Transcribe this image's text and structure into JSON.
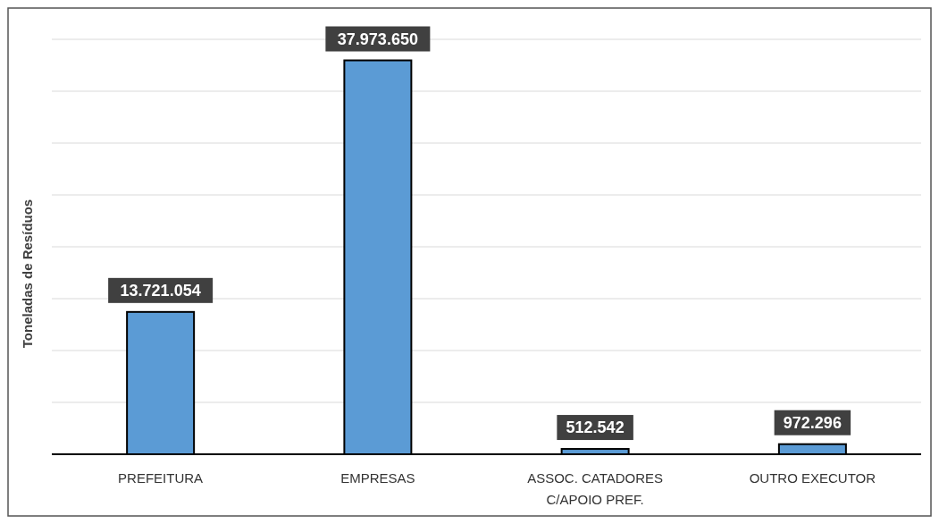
{
  "chart_data": {
    "type": "bar",
    "ylabel": "Toneladas de Resíduos",
    "categories": [
      "PREFEITURA",
      "EMPRESAS",
      "ASSOC. CATADORES C/APOIO PREF.",
      "OUTRO EXECUTOR"
    ],
    "values": [
      13721054,
      37973650,
      512542,
      972296
    ],
    "value_labels": [
      "13.721.054",
      "37.973.650",
      "512.542",
      "972.296"
    ],
    "color": "#5b9bd5",
    "ylim": [
      0,
      40000000
    ],
    "yticks": [
      {
        "value": 0,
        "label": null
      },
      {
        "value": 5000000,
        "label": null
      },
      {
        "value": 10000000,
        "label": null
      },
      {
        "value": 15000000,
        "label": null
      },
      {
        "value": 20000000,
        "label": null
      },
      {
        "value": 25000000,
        "label": null
      },
      {
        "value": 30000000,
        "label": null
      },
      {
        "value": 35000000,
        "label": null
      },
      {
        "value": 40000000,
        "label": null
      }
    ],
    "grid": "y",
    "tick_labels": "x"
  }
}
